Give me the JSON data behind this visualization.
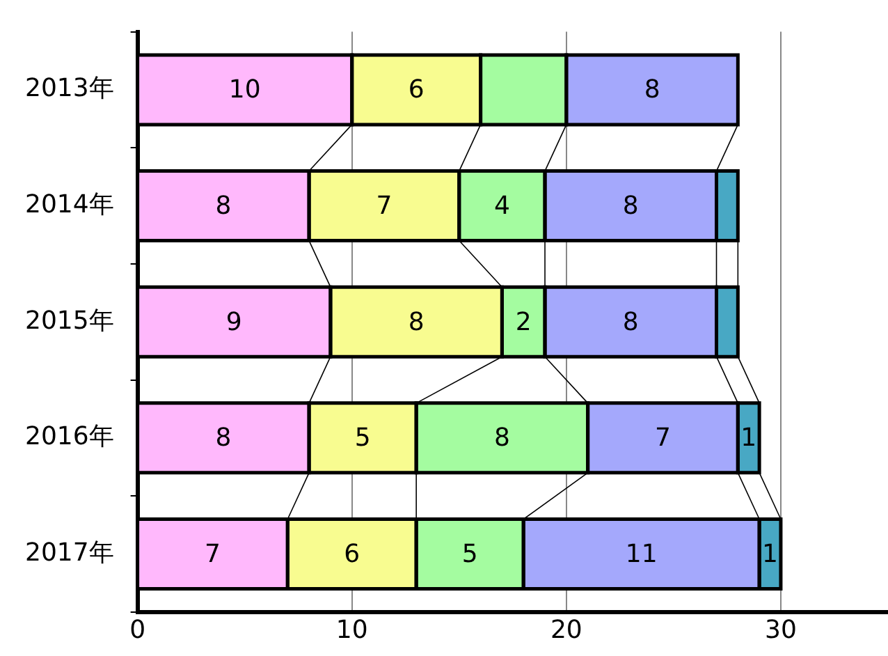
{
  "chart_data": {
    "type": "bar",
    "orientation": "horizontal",
    "stacked": true,
    "categories": [
      "2013年",
      "2014年",
      "2015年",
      "2016年",
      "2017年"
    ],
    "series": [
      {
        "color": "#ffb8fc",
        "values": [
          10,
          8,
          9,
          8,
          7
        ],
        "value_labels": [
          "10",
          "8",
          "9",
          "8",
          "7"
        ]
      },
      {
        "color": "#f8fc90",
        "values": [
          6,
          7,
          8,
          5,
          6
        ],
        "value_labels": [
          "6",
          "7",
          "8",
          "5",
          "6"
        ]
      },
      {
        "color": "#a4fca0",
        "values": [
          4,
          4,
          2,
          8,
          5
        ],
        "value_labels": [
          null,
          "4",
          "2",
          "8",
          "5"
        ]
      },
      {
        "color": "#a4a8fc",
        "values": [
          8,
          8,
          8,
          7,
          11
        ],
        "value_labels": [
          "8",
          "8",
          "8",
          "7",
          "11"
        ]
      },
      {
        "color": "#48a8c4",
        "values": [
          null,
          1,
          1,
          1,
          1
        ],
        "value_labels": [
          null,
          null,
          null,
          "1",
          "1"
        ]
      }
    ],
    "xlim": [
      0,
      35
    ],
    "xticks": [
      0,
      10,
      20,
      30
    ],
    "grid": "x",
    "legend": false
  }
}
